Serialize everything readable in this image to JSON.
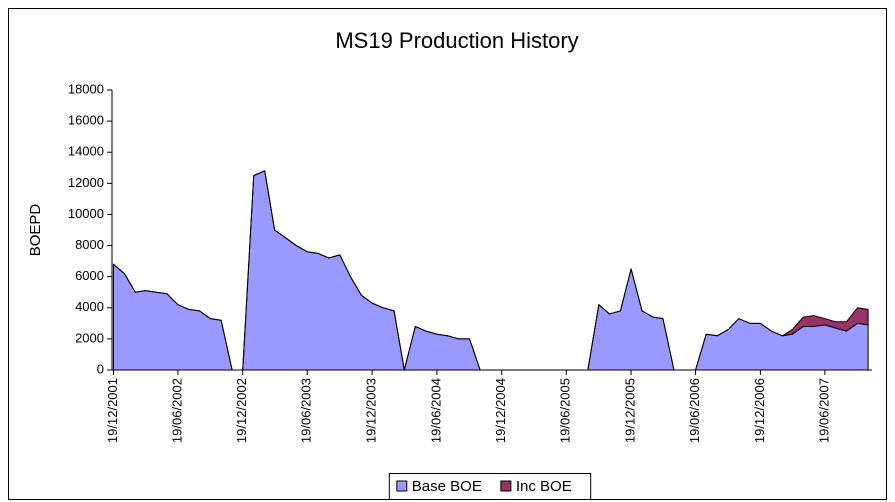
{
  "chart_data": {
    "type": "area",
    "stacked": true,
    "title": "MS19 Production History",
    "y_label": "BOEPD",
    "xlim": [
      "15/12/2001",
      "30/10/2007"
    ],
    "xticks": [
      "19/12/2001",
      "19/06/2002",
      "19/12/2002",
      "19/06/2003",
      "19/12/2003",
      "19/06/2004",
      "19/12/2004",
      "19/06/2005",
      "19/12/2005",
      "19/06/2006",
      "19/12/2006",
      "19/06/2007"
    ],
    "ylim": [
      0,
      18000
    ],
    "yticks": [
      0,
      2000,
      4000,
      6000,
      8000,
      10000,
      12000,
      14000,
      16000,
      18000
    ],
    "grid": false,
    "legend": "bottom",
    "x": [
      "19/12/2001",
      "19/01/2002",
      "19/02/2002",
      "19/03/2002",
      "19/04/2002",
      "19/05/2002",
      "19/06/2002",
      "19/07/2002",
      "19/08/2002",
      "19/09/2002",
      "19/10/2002",
      "19/11/2002",
      "19/12/2002",
      "19/01/2003",
      "19/02/2003",
      "19/03/2003",
      "19/04/2003",
      "19/05/2003",
      "19/06/2003",
      "19/07/2003",
      "19/08/2003",
      "19/09/2003",
      "19/10/2003",
      "19/11/2003",
      "19/12/2003",
      "19/01/2004",
      "19/02/2004",
      "19/03/2004",
      "19/04/2004",
      "19/05/2004",
      "19/06/2004",
      "19/07/2004",
      "19/08/2004",
      "19/09/2004",
      "19/10/2004",
      "19/11/2004",
      "19/12/2004",
      "19/01/2005",
      "19/02/2005",
      "19/03/2005",
      "19/04/2005",
      "19/05/2005",
      "19/06/2005",
      "19/07/2005",
      "19/08/2005",
      "19/09/2005",
      "19/10/2005",
      "19/11/2005",
      "19/12/2005",
      "19/01/2006",
      "19/02/2006",
      "19/03/2006",
      "19/04/2006",
      "19/05/2006",
      "19/06/2006",
      "19/07/2006",
      "19/08/2006",
      "19/09/2006",
      "19/10/2006",
      "19/11/2006",
      "19/12/2006",
      "19/01/2007",
      "19/02/2007",
      "19/03/2007",
      "19/04/2007",
      "19/05/2007",
      "19/06/2007",
      "19/07/2007",
      "19/08/2007",
      "19/09/2007",
      "19/10/2007"
    ],
    "series": [
      {
        "name": "Base BOE",
        "color": "#9999ff",
        "values": [
          6800,
          6200,
          5000,
          5100,
          5000,
          4900,
          4200,
          3900,
          3800,
          3300,
          3200,
          0,
          0,
          12500,
          12800,
          9000,
          8500,
          8000,
          7600,
          7500,
          7200,
          7400,
          6000,
          4800,
          4300,
          4000,
          3800,
          0,
          2800,
          2500,
          2300,
          2200,
          2000,
          2000,
          0,
          0,
          0,
          0,
          0,
          0,
          0,
          0,
          0,
          0,
          0,
          4200,
          3600,
          3800,
          6500,
          3800,
          3400,
          3300,
          0,
          0,
          0,
          2300,
          2200,
          2600,
          3300,
          3000,
          3000,
          2500,
          2200,
          2300,
          2800,
          2800,
          2900,
          2700,
          2500,
          3000,
          2900
        ]
      },
      {
        "name": "Inc BOE",
        "color": "#993366",
        "values": [
          0,
          0,
          0,
          0,
          0,
          0,
          0,
          0,
          0,
          0,
          0,
          0,
          0,
          0,
          0,
          0,
          0,
          0,
          0,
          0,
          0,
          0,
          0,
          0,
          0,
          0,
          0,
          0,
          0,
          0,
          0,
          0,
          0,
          0,
          0,
          0,
          0,
          0,
          0,
          0,
          0,
          0,
          0,
          0,
          0,
          0,
          0,
          0,
          0,
          0,
          0,
          0,
          0,
          0,
          0,
          0,
          0,
          0,
          0,
          0,
          0,
          0,
          0,
          300,
          600,
          700,
          400,
          400,
          600,
          1000,
          1000
        ]
      }
    ]
  }
}
